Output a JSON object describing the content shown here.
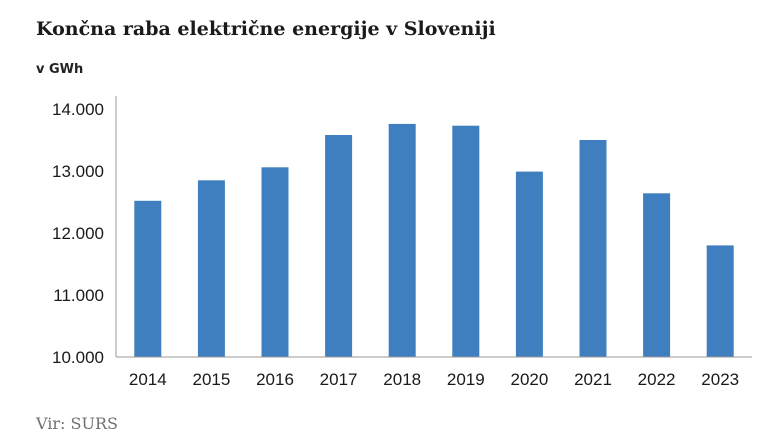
{
  "header": {
    "title": "Končna raba električne energije v Sloveniji",
    "unit": "v GWh"
  },
  "footer": {
    "source": "Vir: SURS"
  },
  "colors": {
    "bar": "#3f7fbf",
    "axis": "#999999"
  },
  "chart_data": {
    "type": "bar",
    "title": "Končna raba električne energije v Sloveniji",
    "ylabel": "v GWh",
    "xlabel": "",
    "categories": [
      "2014",
      "2015",
      "2016",
      "2017",
      "2018",
      "2019",
      "2020",
      "2021",
      "2022",
      "2023"
    ],
    "values": [
      12520,
      12850,
      13060,
      13580,
      13760,
      13730,
      12990,
      13500,
      12640,
      11800
    ],
    "ylim": [
      10000,
      14000
    ],
    "yticks": [
      10000,
      11000,
      12000,
      13000,
      14000
    ],
    "ytick_labels": [
      "10.000",
      "11.000",
      "12.000",
      "13.000",
      "14.000"
    ],
    "grid": false,
    "legend": "none"
  }
}
